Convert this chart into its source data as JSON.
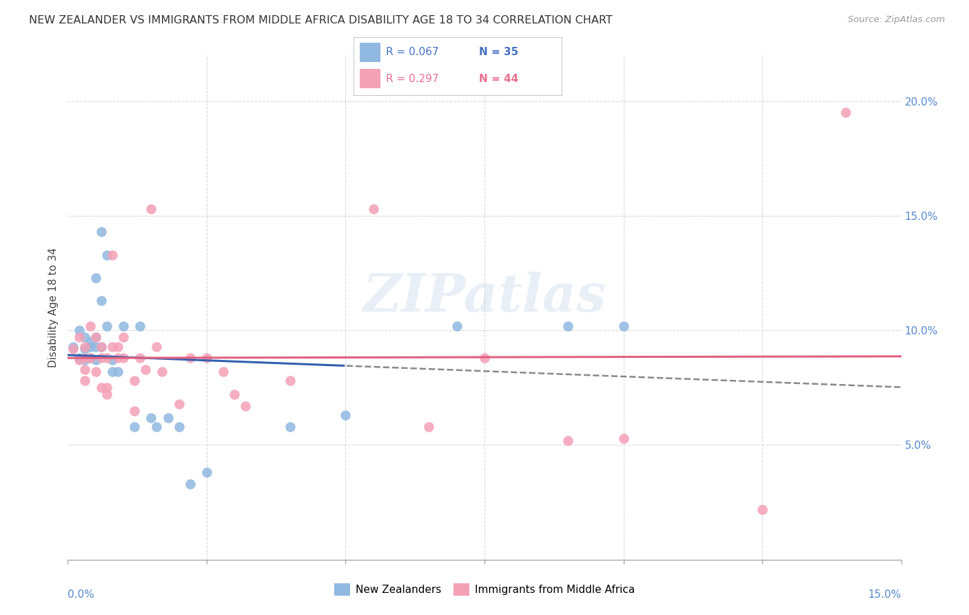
{
  "title": "NEW ZEALANDER VS IMMIGRANTS FROM MIDDLE AFRICA DISABILITY AGE 18 TO 34 CORRELATION CHART",
  "source": "Source: ZipAtlas.com",
  "ylabel": "Disability Age 18 to 34",
  "xlim": [
    0.0,
    0.15
  ],
  "ylim": [
    0.0,
    0.22
  ],
  "color_nz": "#90b8e0",
  "color_im": "#f4a0b5",
  "color_nz_line": "#3060b0",
  "color_im_line": "#e06080",
  "color_nz_text": "#4472c4",
  "color_im_text": "#e87090",
  "nz_x": [
    0.001,
    0.002,
    0.002,
    0.003,
    0.003,
    0.003,
    0.004,
    0.004,
    0.004,
    0.005,
    0.005,
    0.005,
    0.005,
    0.006,
    0.006,
    0.006,
    0.007,
    0.007,
    0.008,
    0.008,
    0.009,
    0.01,
    0.012,
    0.013,
    0.015,
    0.016,
    0.018,
    0.02,
    0.022,
    0.025,
    0.04,
    0.05,
    0.07,
    0.09,
    0.1
  ],
  "nz_y": [
    0.093,
    0.1,
    0.088,
    0.097,
    0.092,
    0.087,
    0.093,
    0.088,
    0.095,
    0.123,
    0.093,
    0.097,
    0.087,
    0.143,
    0.113,
    0.093,
    0.133,
    0.102,
    0.082,
    0.087,
    0.082,
    0.102,
    0.058,
    0.102,
    0.062,
    0.058,
    0.062,
    0.058,
    0.033,
    0.038,
    0.058,
    0.063,
    0.102,
    0.102,
    0.102
  ],
  "im_x": [
    0.001,
    0.002,
    0.002,
    0.003,
    0.003,
    0.003,
    0.003,
    0.004,
    0.004,
    0.005,
    0.005,
    0.006,
    0.006,
    0.006,
    0.007,
    0.007,
    0.007,
    0.008,
    0.008,
    0.009,
    0.009,
    0.01,
    0.01,
    0.012,
    0.012,
    0.013,
    0.014,
    0.015,
    0.016,
    0.017,
    0.02,
    0.022,
    0.025,
    0.028,
    0.03,
    0.032,
    0.04,
    0.055,
    0.065,
    0.075,
    0.09,
    0.1,
    0.125,
    0.14
  ],
  "im_y": [
    0.092,
    0.097,
    0.087,
    0.093,
    0.088,
    0.083,
    0.078,
    0.102,
    0.088,
    0.097,
    0.082,
    0.093,
    0.088,
    0.075,
    0.075,
    0.088,
    0.072,
    0.133,
    0.093,
    0.093,
    0.088,
    0.097,
    0.088,
    0.078,
    0.065,
    0.088,
    0.083,
    0.153,
    0.093,
    0.082,
    0.068,
    0.088,
    0.088,
    0.082,
    0.072,
    0.067,
    0.078,
    0.153,
    0.058,
    0.088,
    0.052,
    0.053,
    0.022,
    0.195
  ],
  "watermark_text": "ZIPatlas",
  "background_color": "#ffffff",
  "grid_color": "#d8d8d8",
  "legend_r_nz": "R = 0.067",
  "legend_n_nz": "N = 35",
  "legend_r_im": "R = 0.297",
  "legend_n_im": "N = 44"
}
